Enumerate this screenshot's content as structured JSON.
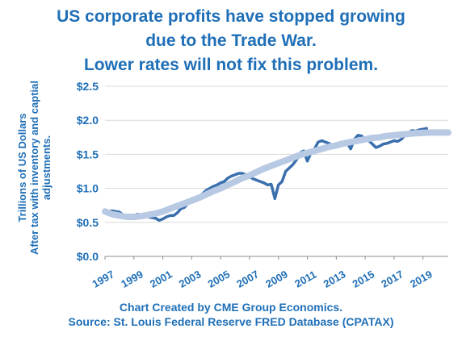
{
  "title_lines": [
    "US corporate profits have stopped growing",
    "due to the Trade War.",
    "Lower rates will not fix this problem."
  ],
  "ylabel_lines": [
    "Trillions of US Dollars",
    "After tax with inventory and captial",
    "adjustments."
  ],
  "footer_lines": [
    "Chart Created by CME Group Economics.",
    "Source: St. Louis Federal Reserve FRED Database (CPATAX)"
  ],
  "colors": {
    "text": "#1f6fb7",
    "series": "#3a6fae",
    "trend": "#b7c9e3",
    "grid": "#d9d9d9"
  },
  "chart_data": {
    "type": "line",
    "xlabel": "",
    "ylabel": "Trillions of US Dollars After tax with inventory and captial adjustments.",
    "xlim": [
      1997,
      2020.75
    ],
    "ylim": [
      0,
      2.5
    ],
    "y_ticks": [
      "$0.0",
      "$0.5",
      "$1.0",
      "$1.5",
      "$2.0",
      "$2.5"
    ],
    "x_ticks": [
      "1997",
      "1999",
      "2001",
      "2003",
      "2005",
      "2007",
      "2009",
      "2011",
      "2013",
      "2015",
      "2017",
      "2019"
    ],
    "grid": "horizontal",
    "series": [
      {
        "style": "solid",
        "points": [
          [
            1997.0,
            0.64
          ],
          [
            1997.25,
            0.66
          ],
          [
            1997.5,
            0.67
          ],
          [
            1997.75,
            0.66
          ],
          [
            1998.0,
            0.65
          ],
          [
            1998.25,
            0.61
          ],
          [
            1998.5,
            0.6
          ],
          [
            1998.75,
            0.58
          ],
          [
            1999.0,
            0.6
          ],
          [
            1999.25,
            0.62
          ],
          [
            1999.5,
            0.61
          ],
          [
            1999.75,
            0.6
          ],
          [
            2000.0,
            0.58
          ],
          [
            2000.25,
            0.57
          ],
          [
            2000.5,
            0.56
          ],
          [
            2000.75,
            0.53
          ],
          [
            2001.0,
            0.55
          ],
          [
            2001.25,
            0.58
          ],
          [
            2001.5,
            0.6
          ],
          [
            2001.75,
            0.6
          ],
          [
            2002.0,
            0.64
          ],
          [
            2002.25,
            0.7
          ],
          [
            2002.5,
            0.72
          ],
          [
            2002.75,
            0.78
          ],
          [
            2003.0,
            0.8
          ],
          [
            2003.25,
            0.82
          ],
          [
            2003.5,
            0.86
          ],
          [
            2003.75,
            0.92
          ],
          [
            2004.0,
            0.97
          ],
          [
            2004.25,
            1.0
          ],
          [
            2004.5,
            1.03
          ],
          [
            2004.75,
            1.05
          ],
          [
            2005.0,
            1.08
          ],
          [
            2005.25,
            1.1
          ],
          [
            2005.5,
            1.15
          ],
          [
            2005.75,
            1.18
          ],
          [
            2006.0,
            1.2
          ],
          [
            2006.25,
            1.22
          ],
          [
            2006.5,
            1.22
          ],
          [
            2006.75,
            1.2
          ],
          [
            2007.0,
            1.17
          ],
          [
            2007.25,
            1.14
          ],
          [
            2007.5,
            1.12
          ],
          [
            2007.75,
            1.1
          ],
          [
            2008.0,
            1.08
          ],
          [
            2008.25,
            1.05
          ],
          [
            2008.5,
            1.06
          ],
          [
            2008.75,
            0.85
          ],
          [
            2009.0,
            1.05
          ],
          [
            2009.25,
            1.1
          ],
          [
            2009.5,
            1.25
          ],
          [
            2009.75,
            1.3
          ],
          [
            2010.0,
            1.35
          ],
          [
            2010.25,
            1.42
          ],
          [
            2010.5,
            1.52
          ],
          [
            2010.75,
            1.55
          ],
          [
            2011.0,
            1.4
          ],
          [
            2011.25,
            1.52
          ],
          [
            2011.5,
            1.58
          ],
          [
            2011.75,
            1.68
          ],
          [
            2012.0,
            1.7
          ],
          [
            2012.25,
            1.68
          ],
          [
            2012.5,
            1.66
          ],
          [
            2012.75,
            1.63
          ],
          [
            2013.0,
            1.62
          ],
          [
            2013.25,
            1.64
          ],
          [
            2013.5,
            1.66
          ],
          [
            2013.75,
            1.67
          ],
          [
            2014.0,
            1.58
          ],
          [
            2014.25,
            1.72
          ],
          [
            2014.5,
            1.78
          ],
          [
            2014.75,
            1.77
          ],
          [
            2015.0,
            1.72
          ],
          [
            2015.25,
            1.7
          ],
          [
            2015.5,
            1.65
          ],
          [
            2015.75,
            1.6
          ],
          [
            2016.0,
            1.62
          ],
          [
            2016.25,
            1.65
          ],
          [
            2016.5,
            1.66
          ],
          [
            2016.75,
            1.68
          ],
          [
            2017.0,
            1.7
          ],
          [
            2017.25,
            1.69
          ],
          [
            2017.5,
            1.72
          ],
          [
            2017.75,
            1.78
          ],
          [
            2018.0,
            1.82
          ],
          [
            2018.25,
            1.85
          ],
          [
            2018.5,
            1.84
          ],
          [
            2018.75,
            1.86
          ],
          [
            2019.0,
            1.87
          ],
          [
            2019.25,
            1.88
          ]
        ]
      },
      {
        "style": "trend",
        "points": [
          [
            1997.0,
            0.66
          ],
          [
            1997.5,
            0.62
          ],
          [
            1998.0,
            0.6
          ],
          [
            1998.5,
            0.58
          ],
          [
            1999.0,
            0.58
          ],
          [
            1999.5,
            0.59
          ],
          [
            2000.0,
            0.61
          ],
          [
            2000.5,
            0.63
          ],
          [
            2001.0,
            0.66
          ],
          [
            2001.5,
            0.7
          ],
          [
            2002.0,
            0.74
          ],
          [
            2002.5,
            0.78
          ],
          [
            2003.0,
            0.82
          ],
          [
            2003.5,
            0.86
          ],
          [
            2004.0,
            0.91
          ],
          [
            2004.5,
            0.96
          ],
          [
            2005.0,
            1.0
          ],
          [
            2005.5,
            1.05
          ],
          [
            2006.0,
            1.1
          ],
          [
            2006.5,
            1.15
          ],
          [
            2007.0,
            1.19
          ],
          [
            2007.5,
            1.24
          ],
          [
            2008.0,
            1.29
          ],
          [
            2008.5,
            1.33
          ],
          [
            2009.0,
            1.37
          ],
          [
            2009.5,
            1.41
          ],
          [
            2010.0,
            1.45
          ],
          [
            2010.5,
            1.49
          ],
          [
            2011.0,
            1.52
          ],
          [
            2011.5,
            1.55
          ],
          [
            2012.0,
            1.58
          ],
          [
            2012.5,
            1.61
          ],
          [
            2013.0,
            1.63
          ],
          [
            2013.5,
            1.66
          ],
          [
            2014.0,
            1.68
          ],
          [
            2014.5,
            1.7
          ],
          [
            2015.0,
            1.72
          ],
          [
            2015.5,
            1.74
          ],
          [
            2016.0,
            1.75
          ],
          [
            2016.5,
            1.77
          ],
          [
            2017.0,
            1.78
          ],
          [
            2017.5,
            1.79
          ],
          [
            2018.0,
            1.8
          ],
          [
            2018.5,
            1.81
          ],
          [
            2019.0,
            1.815
          ],
          [
            2019.5,
            1.82
          ],
          [
            2020.0,
            1.82
          ],
          [
            2020.75,
            1.82
          ]
        ]
      }
    ]
  }
}
